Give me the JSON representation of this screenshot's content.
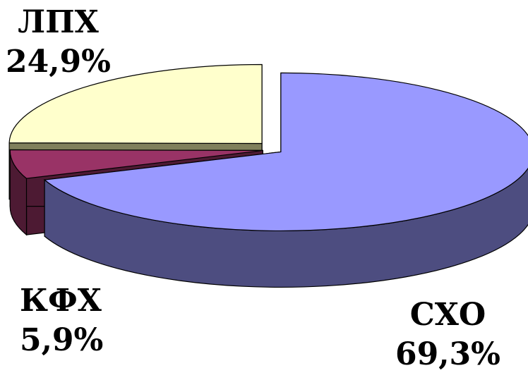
{
  "chart_data": {
    "type": "pie",
    "style": "3d-exploded",
    "title": "",
    "slices": [
      {
        "label": "СХО",
        "value": 69.3,
        "value_label": "69,3%",
        "color": "#9999ff",
        "side_color": "#4d4d80"
      },
      {
        "label": "КФХ",
        "value": 5.9,
        "value_label": "5,9%",
        "color": "#993366",
        "side_color": "#4d1a33"
      },
      {
        "label": "ЛПХ",
        "value": 24.9,
        "value_label": "24,9%",
        "color": "#ffffcc",
        "side_color": "#80805c"
      }
    ]
  }
}
